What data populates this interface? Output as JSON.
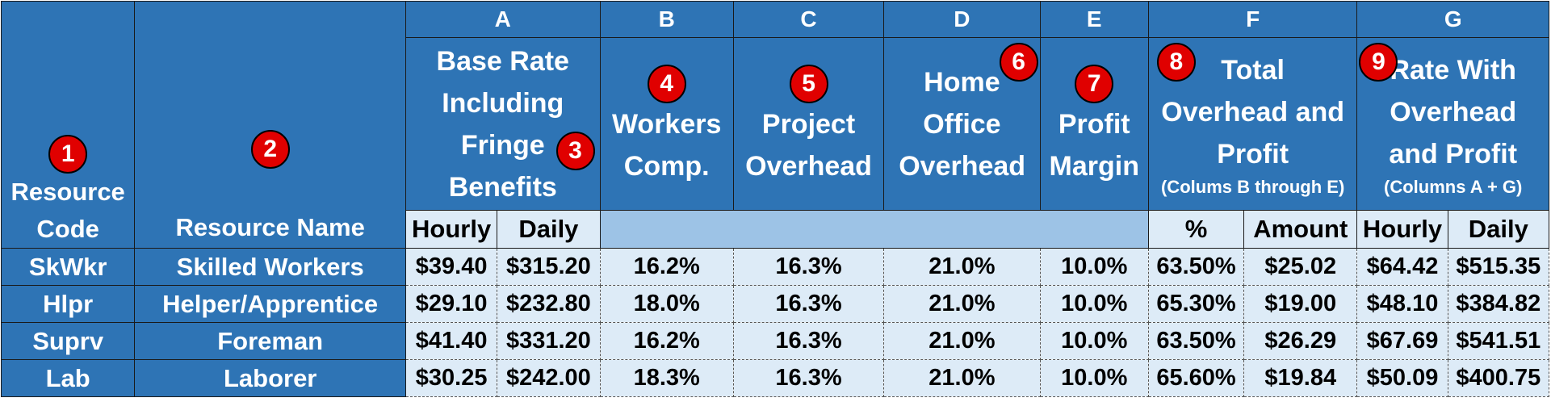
{
  "columns": {
    "letters": [
      "A",
      "B",
      "C",
      "D",
      "E",
      "F",
      "G"
    ],
    "resource_code_title": "Resource Code",
    "resource_name_title": "Resource Name",
    "a_title": "Base Rate Including Fringe Benefits",
    "b_title": "Workers Comp.",
    "c_title": "Project Overhead",
    "d_title": "Home Office Overhead",
    "e_title": "Profit Margin",
    "f_title": "Total Overhead and Profit",
    "f_note": "(Colums B through E)",
    "g_title": "Rate With Overhead and Profit",
    "g_note": "(Columns A + G)"
  },
  "badges": [
    "1",
    "2",
    "3",
    "4",
    "5",
    "6",
    "7",
    "8",
    "9"
  ],
  "units": {
    "a_hourly": "Hourly",
    "a_daily": "Daily",
    "f_pct": "%",
    "f_amount": "Amount",
    "g_hourly": "Hourly",
    "g_daily": "Daily"
  },
  "rows": [
    {
      "code": "SkWkr",
      "name": "Skilled Workers",
      "a_hourly": "$39.40",
      "a_daily": "$315.20",
      "b": "16.2%",
      "c": "16.3%",
      "d": "21.0%",
      "e": "10.0%",
      "f_pct": "63.50%",
      "f_amount": "$25.02",
      "g_hourly": "$64.42",
      "g_daily": "$515.35"
    },
    {
      "code": "Hlpr",
      "name": "Helper/Apprentice",
      "a_hourly": "$29.10",
      "a_daily": "$232.80",
      "b": "18.0%",
      "c": "16.3%",
      "d": "21.0%",
      "e": "10.0%",
      "f_pct": "65.30%",
      "f_amount": "$19.00",
      "g_hourly": "$48.10",
      "g_daily": "$384.82"
    },
    {
      "code": "Suprv",
      "name": "Foreman",
      "a_hourly": "$41.40",
      "a_daily": "$331.20",
      "b": "16.2%",
      "c": "16.3%",
      "d": "21.0%",
      "e": "10.0%",
      "f_pct": "63.50%",
      "f_amount": "$26.29",
      "g_hourly": "$67.69",
      "g_daily": "$541.51"
    },
    {
      "code": "Lab",
      "name": "Laborer",
      "a_hourly": "$30.25",
      "a_daily": "$242.00",
      "b": "18.3%",
      "c": "16.3%",
      "d": "21.0%",
      "e": "10.0%",
      "f_pct": "65.60%",
      "f_amount": "$19.84",
      "g_hourly": "$50.09",
      "g_daily": "$400.75"
    }
  ]
}
